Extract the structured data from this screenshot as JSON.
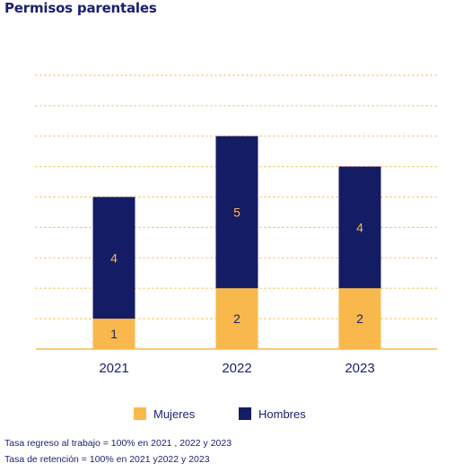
{
  "colors": {
    "title": "#1a1f6e",
    "mujeres": "#f9b84b",
    "hombres": "#141c66",
    "axis": "#f9b84b",
    "grid": "#f9b84b",
    "tick_text": "#1a1f6e",
    "label_on_mujeres": "#1a1f6e",
    "label_on_hombres": "#f9b84b"
  },
  "chart_data": {
    "type": "bar",
    "stacked": true,
    "title": "Permisos parentales",
    "categories": [
      "2021",
      "2022",
      "2023"
    ],
    "series": [
      {
        "name": "Mujeres",
        "values": [
          1,
          2,
          2
        ]
      },
      {
        "name": "Hombres",
        "values": [
          4,
          5,
          4
        ]
      }
    ],
    "data_labels": [
      [
        "1",
        "2",
        "2"
      ],
      [
        "4",
        "5",
        "4"
      ]
    ],
    "xlabel": "",
    "ylabel": "",
    "ylim": [
      0,
      9
    ],
    "y_gridlines": [
      1,
      2,
      3,
      4,
      5,
      6,
      7,
      8,
      9
    ],
    "grid": "dotted horizontal",
    "legend": {
      "placement": "bottom-center",
      "entries": [
        "Mujeres",
        "Hombres"
      ]
    }
  },
  "notes": [
    "Tasa regreso al trabajo = 100% en 2021 , 2022 y 2023",
    "Tasa de retención = 100% en 2021 y2022 y 2023"
  ]
}
